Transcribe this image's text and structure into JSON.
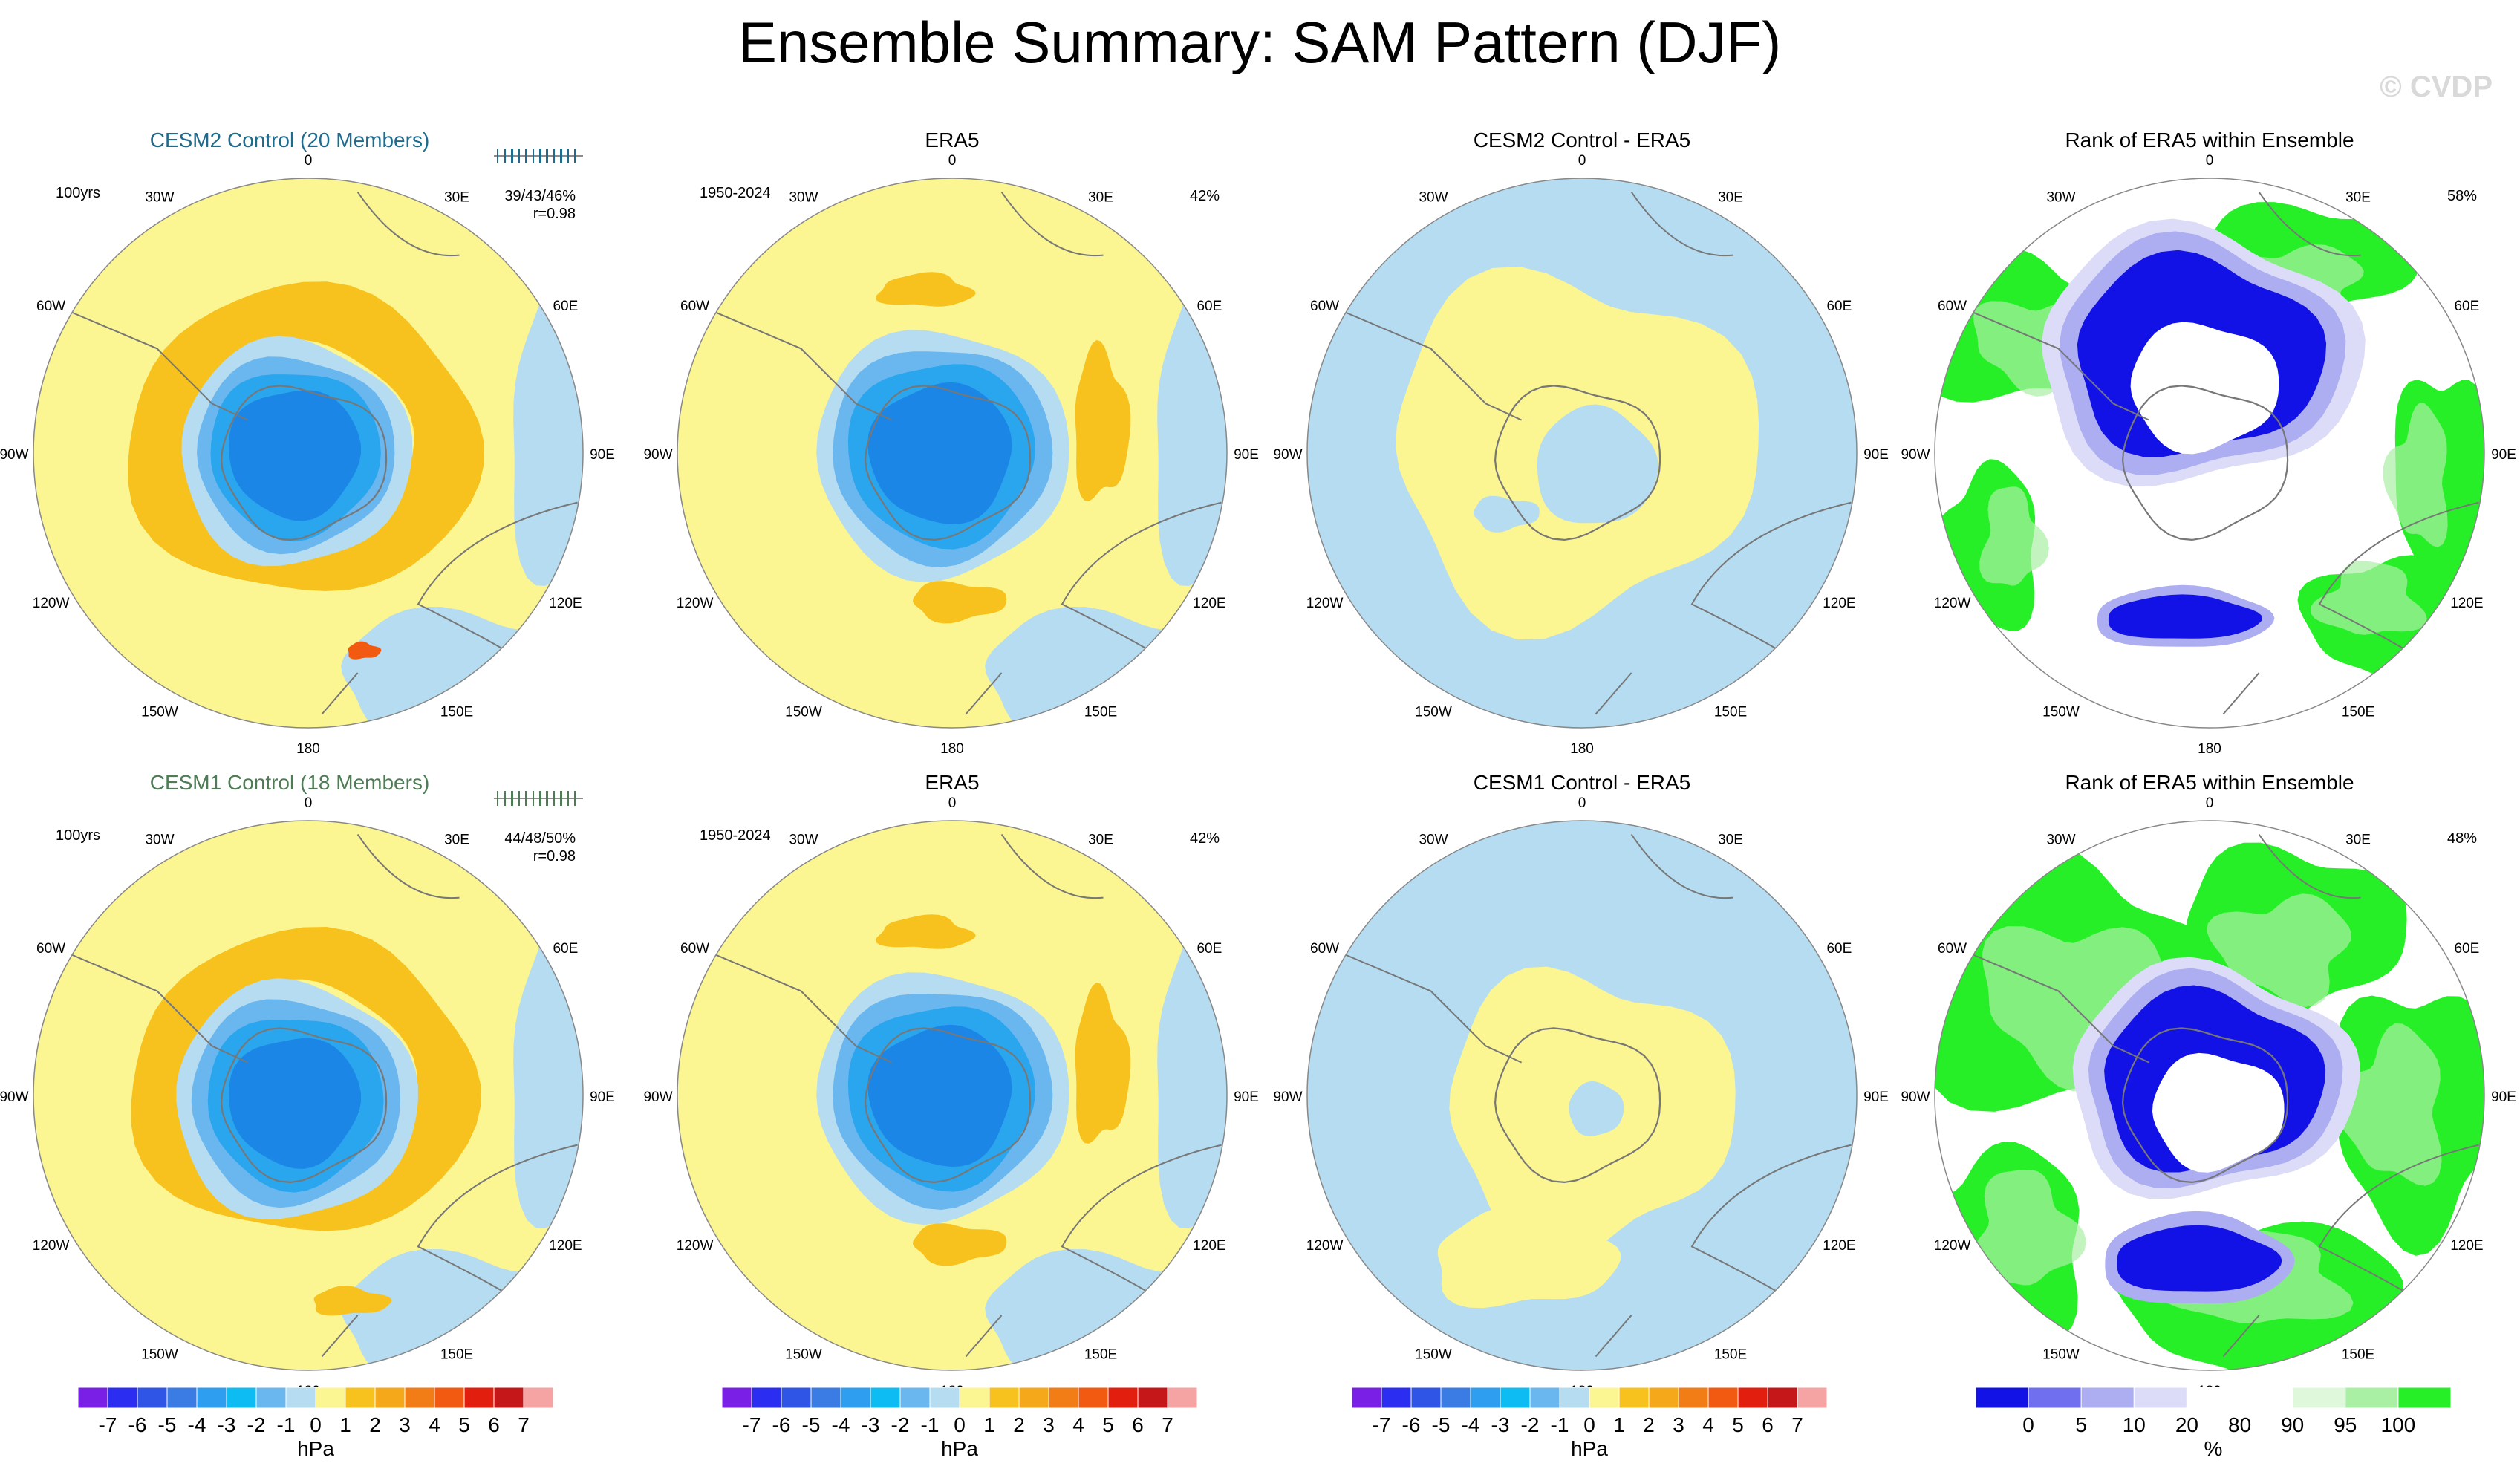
{
  "title": "Ensemble Summary: SAM Pattern (DJF)",
  "watermark": "© CVDP",
  "colors": {
    "background": "#ffffff",
    "ocean_map_bg": "#ffffff",
    "light_yellow": "#fbf592",
    "light_blue": "#b5dcf1",
    "cesm2_title": "#1f6b8e",
    "cesm1_title": "#4e7c55",
    "coast": "#777777"
  },
  "chart_data": [
    {
      "type": "heatmap",
      "panel": "r1c1",
      "title": "CESM2 Control (20 Members)",
      "title_color": "#1f6b8e",
      "left_label": "100yrs",
      "right_label_1": "39/43/46%",
      "right_label_2": "r=0.98",
      "units": "hPa",
      "has_strip": true,
      "field": [
        {
          "kind": "band",
          "r": 0.56,
          "w": 0.2,
          "ox": -0.02,
          "oy": -0.04,
          "color": "#f7c21e"
        },
        {
          "kind": "blob",
          "cx": 0.2,
          "cy": 0.72,
          "rx": 0.06,
          "ry": 0.03,
          "color": "#f25a12"
        },
        {
          "kind": "fill",
          "r": 0.42,
          "ox": -0.05,
          "oy": 0.0,
          "color": "#b5dcf1"
        },
        {
          "kind": "fill",
          "r": 0.36,
          "ox": -0.05,
          "oy": 0.0,
          "color": "#6ab6ef"
        },
        {
          "kind": "fill",
          "r": 0.31,
          "ox": -0.05,
          "oy": 0.0,
          "color": "#2aa6ee"
        },
        {
          "kind": "fill",
          "r": 0.24,
          "ox": -0.05,
          "oy": 0.0,
          "color": "#1b86e6"
        }
      ]
    },
    {
      "type": "heatmap",
      "panel": "r1c2",
      "title": "ERA5",
      "left_label": "1950-2024",
      "right_label_1": "42%",
      "units": "hPa",
      "field": [
        {
          "kind": "blob",
          "cx": -0.1,
          "cy": -0.59,
          "rx": 0.17,
          "ry": 0.06,
          "color": "#f7c21e"
        },
        {
          "kind": "blob",
          "cx": 0.54,
          "cy": -0.1,
          "rx": 0.1,
          "ry": 0.27,
          "color": "#f7c21e"
        },
        {
          "kind": "blob",
          "cx": 0.02,
          "cy": 0.54,
          "rx": 0.17,
          "ry": 0.07,
          "color": "#f7c21e"
        },
        {
          "kind": "fill",
          "r": 0.46,
          "ox": -0.04,
          "oy": 0.0,
          "color": "#b5dcf1"
        },
        {
          "kind": "fill",
          "r": 0.4,
          "ox": -0.04,
          "oy": 0.0,
          "color": "#6ab6ef"
        },
        {
          "kind": "fill",
          "r": 0.34,
          "ox": -0.04,
          "oy": 0.0,
          "color": "#2aa6ee"
        },
        {
          "kind": "fill",
          "r": 0.26,
          "ox": -0.04,
          "oy": 0.0,
          "color": "#1b86e6"
        }
      ]
    },
    {
      "type": "heatmap",
      "panel": "r1c3",
      "title": "CESM2 Control - ERA5",
      "units": "hPa",
      "field": [
        {
          "kind": "ring_yellow",
          "r": 0.66,
          "ox": -0.04,
          "oy": -0.02,
          "color": "#fbf592"
        },
        {
          "kind": "fill",
          "r": 0.22,
          "ox": 0.05,
          "oy": 0.05,
          "color": "#b5dcf1"
        },
        {
          "kind": "blob",
          "cx": -0.28,
          "cy": 0.22,
          "rx": 0.12,
          "ry": 0.06,
          "color": "#b5dcf1"
        }
      ]
    },
    {
      "type": "heatmap",
      "panel": "r1c4",
      "title": "Rank of ERA5 within Ensemble",
      "right_label_1": "58%",
      "units": "%",
      "field": [
        {
          "kind": "rank",
          "variant": 1
        }
      ]
    },
    {
      "type": "heatmap",
      "panel": "r2c1",
      "title": "CESM1 Control (18 Members)",
      "title_color": "#4e7c55",
      "left_label": "100yrs",
      "right_label_1": "44/48/50%",
      "right_label_2": "r=0.98",
      "units": "hPa",
      "has_strip": true,
      "field": [
        {
          "kind": "band",
          "r": 0.55,
          "w": 0.18,
          "ox": -0.02,
          "oy": -0.04,
          "color": "#f7c21e"
        },
        {
          "kind": "blob",
          "cx": 0.15,
          "cy": 0.75,
          "rx": 0.14,
          "ry": 0.05,
          "color": "#f7c21e"
        },
        {
          "kind": "fill",
          "r": 0.44,
          "ox": -0.05,
          "oy": 0.02,
          "color": "#b5dcf1"
        },
        {
          "kind": "fill",
          "r": 0.38,
          "ox": -0.05,
          "oy": 0.02,
          "color": "#6ab6ef"
        },
        {
          "kind": "fill",
          "r": 0.32,
          "ox": -0.05,
          "oy": 0.02,
          "color": "#2aa6ee"
        },
        {
          "kind": "fill",
          "r": 0.24,
          "ox": -0.05,
          "oy": 0.02,
          "color": "#1b86e6"
        }
      ]
    },
    {
      "type": "heatmap",
      "panel": "r2c2",
      "title": "ERA5",
      "left_label": "1950-2024",
      "right_label_1": "42%",
      "units": "hPa",
      "field": [
        {
          "kind": "blob",
          "cx": -0.1,
          "cy": -0.59,
          "rx": 0.17,
          "ry": 0.06,
          "color": "#f7c21e"
        },
        {
          "kind": "blob",
          "cx": 0.54,
          "cy": -0.1,
          "rx": 0.1,
          "ry": 0.27,
          "color": "#f7c21e"
        },
        {
          "kind": "blob",
          "cx": 0.02,
          "cy": 0.54,
          "rx": 0.17,
          "ry": 0.07,
          "color": "#f7c21e"
        },
        {
          "kind": "fill",
          "r": 0.46,
          "ox": -0.04,
          "oy": 0.0,
          "color": "#b5dcf1"
        },
        {
          "kind": "fill",
          "r": 0.4,
          "ox": -0.04,
          "oy": 0.0,
          "color": "#6ab6ef"
        },
        {
          "kind": "fill",
          "r": 0.34,
          "ox": -0.04,
          "oy": 0.0,
          "color": "#2aa6ee"
        },
        {
          "kind": "fill",
          "r": 0.26,
          "ox": -0.04,
          "oy": 0.0,
          "color": "#1b86e6"
        }
      ]
    },
    {
      "type": "heatmap",
      "panel": "r2c3",
      "title": "CESM1 Control - ERA5",
      "units": "hPa",
      "field": [
        {
          "kind": "ring_yellow",
          "r": 0.52,
          "ox": 0.02,
          "oy": 0.05,
          "color": "#fbf592"
        },
        {
          "kind": "blob",
          "cx": -0.22,
          "cy": 0.6,
          "rx": 0.33,
          "ry": 0.17,
          "color": "#fbf592"
        },
        {
          "kind": "fill",
          "r": 0.1,
          "ox": 0.05,
          "oy": 0.05,
          "color": "#b5dcf1"
        }
      ]
    },
    {
      "type": "heatmap",
      "panel": "r2c4",
      "title": "Rank of ERA5 within Ensemble",
      "right_label_1": "48%",
      "units": "%",
      "field": [
        {
          "kind": "rank",
          "variant": 2
        }
      ]
    }
  ],
  "map_labels": [
    "0",
    "30E",
    "60E",
    "90E",
    "120E",
    "150E",
    "180",
    "150W",
    "120W",
    "90W",
    "60W",
    "30W"
  ],
  "colorbar_hpa": {
    "colors": [
      "#7a1fe6",
      "#2b2ef0",
      "#2f55e6",
      "#3b7be4",
      "#2e9ef0",
      "#0dbcf2",
      "#6ab6ef",
      "#b5dcf1",
      "#fbf592",
      "#f7c21e",
      "#f5a81a",
      "#f27d16",
      "#f25a12",
      "#e21e0e",
      "#c5161a",
      "#f6a3a3"
    ],
    "ticks": [
      "-7",
      "-6",
      "-5",
      "-4",
      "-3",
      "-2",
      "-1",
      "0",
      "1",
      "2",
      "3",
      "4",
      "5",
      "6",
      "7"
    ],
    "label": "hPa"
  },
  "colorbar_rank": {
    "colors": [
      "#1212e6",
      "#6f6ff0",
      "#adadf2",
      "#dcdcf8",
      "#ffffff",
      "#ffffff",
      "#dff8dc",
      "#a9f0a4",
      "#27ef27"
    ],
    "ticks": [
      "0",
      "5",
      "10",
      "20",
      "80",
      "90",
      "95",
      "100"
    ],
    "label": "%"
  }
}
